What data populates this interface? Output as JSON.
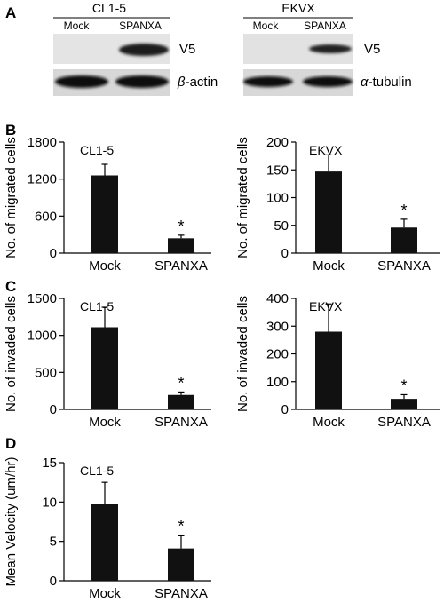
{
  "panels": {
    "a": "A",
    "b": "B",
    "c": "C",
    "d": "D"
  },
  "blots": [
    {
      "cell_line": "CL1-5",
      "lanes": [
        "Mock",
        "SPANXA"
      ],
      "rows": [
        {
          "label": "V5",
          "italic_prefix": "",
          "band_intensity": [
            0,
            1
          ]
        },
        {
          "label": "-actin",
          "italic_prefix": "β",
          "band_intensity": [
            1,
            1
          ]
        }
      ]
    },
    {
      "cell_line": "EKVX",
      "lanes": [
        "Mock",
        "SPANXA"
      ],
      "rows": [
        {
          "label": "V5",
          "italic_prefix": "",
          "band_intensity": [
            0,
            0.7
          ]
        },
        {
          "label": "-tubulin",
          "italic_prefix": "α",
          "band_intensity": [
            1,
            1
          ]
        }
      ]
    }
  ],
  "chart_data": [
    {
      "type": "bar",
      "panel": "B",
      "title": "CL1-5",
      "categories": [
        "Mock",
        "SPANXA"
      ],
      "values": [
        1260,
        240
      ],
      "errors": [
        180,
        50
      ],
      "ylabel": "No. of migrated cells",
      "ylim": [
        0,
        1800
      ],
      "yticks": [
        0,
        600,
        1200,
        1800
      ],
      "significance": [
        "",
        "*"
      ]
    },
    {
      "type": "bar",
      "panel": "B",
      "title": "EKVX",
      "categories": [
        "Mock",
        "SPANXA"
      ],
      "values": [
        147,
        46
      ],
      "errors": [
        30,
        15
      ],
      "ylabel": "No. of migrated cells",
      "ylim": [
        0,
        200
      ],
      "yticks": [
        0,
        50,
        100,
        150,
        200
      ],
      "significance": [
        "",
        "*"
      ]
    },
    {
      "type": "bar",
      "panel": "C",
      "title": "CL1-5",
      "categories": [
        "Mock",
        "SPANXA"
      ],
      "values": [
        1110,
        195
      ],
      "errors": [
        270,
        40
      ],
      "ylabel": "No. of invaded cells",
      "ylim": [
        0,
        1500
      ],
      "yticks": [
        0,
        500,
        1000,
        1500
      ],
      "significance": [
        "",
        "*"
      ]
    },
    {
      "type": "bar",
      "panel": "C",
      "title": "EKVX",
      "categories": [
        "Mock",
        "SPANXA"
      ],
      "values": [
        280,
        38
      ],
      "errors": [
        100,
        15
      ],
      "ylabel": "No. of invaded cells",
      "ylim": [
        0,
        400
      ],
      "yticks": [
        0,
        100,
        200,
        300,
        400
      ],
      "significance": [
        "",
        "*"
      ]
    },
    {
      "type": "bar",
      "panel": "D",
      "title": "CL1-5",
      "categories": [
        "Mock",
        "SPANXA"
      ],
      "values": [
        9.7,
        4.1
      ],
      "errors": [
        2.8,
        1.7
      ],
      "ylabel": "Mean Velocity (um/hr)",
      "ylim": [
        0,
        15
      ],
      "yticks": [
        0,
        5,
        10,
        15
      ],
      "significance": [
        "",
        "*"
      ]
    }
  ]
}
